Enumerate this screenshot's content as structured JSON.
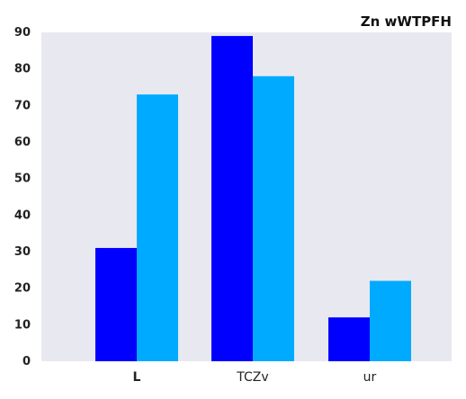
{
  "chart_data": {
    "type": "bar",
    "title": "Zn wWTPFH",
    "xlabel": "",
    "ylabel": "",
    "categories": [
      "L",
      "TCZv",
      "ur"
    ],
    "series": [
      {
        "values": [
          31,
          89,
          12
        ],
        "color": "#0000ff"
      },
      {
        "values": [
          73,
          78,
          22
        ],
        "color": "#00aaff"
      }
    ],
    "ylim": [
      0,
      90
    ],
    "yticks": [
      0,
      10,
      20,
      30,
      40,
      50,
      60,
      70,
      80,
      90
    ],
    "grid": false,
    "legend": "none",
    "background": "#e8e8f0"
  }
}
